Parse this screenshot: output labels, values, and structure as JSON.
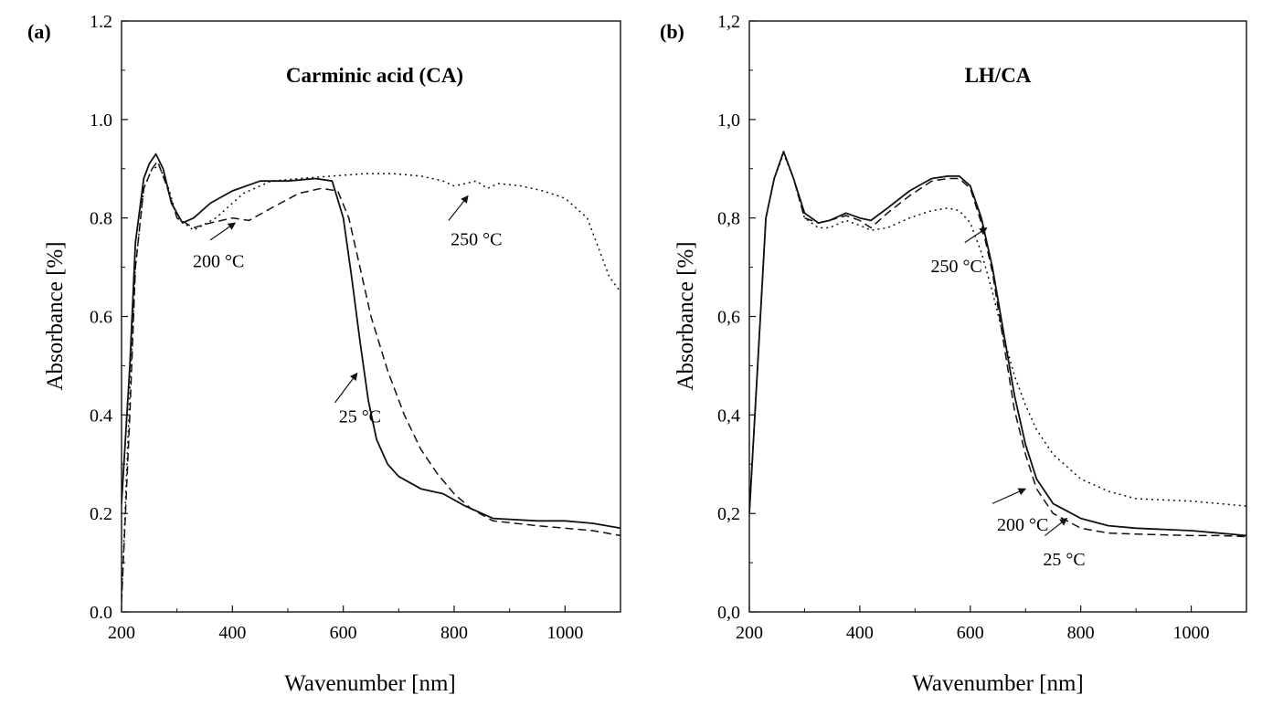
{
  "chart_data": [
    {
      "type": "line",
      "panel_label": "(a)",
      "title": "Carminic acid (CA)",
      "xlabel": "Wavenumber [nm]",
      "ylabel": "Absorbance [%]",
      "xlim": [
        200,
        1100
      ],
      "ylim": [
        0.0,
        1.2
      ],
      "xticks": [
        "200",
        "400",
        "600",
        "800",
        "1000"
      ],
      "xtick_values": [
        200,
        400,
        600,
        800,
        1000
      ],
      "yticks": [
        "0.0",
        "0.2",
        "0.4",
        "0.6",
        "0.8",
        "1.0",
        "1.2"
      ],
      "ytick_values": [
        0,
        0.2,
        0.4,
        0.6,
        0.8,
        1.0,
        1.2
      ],
      "grid": false,
      "series": [
        {
          "name": "25 °C",
          "style": "solid",
          "points": [
            [
              200,
              0.22
            ],
            [
              215,
              0.5
            ],
            [
              225,
              0.75
            ],
            [
              240,
              0.88
            ],
            [
              250,
              0.91
            ],
            [
              262,
              0.93
            ],
            [
              275,
              0.9
            ],
            [
              290,
              0.83
            ],
            [
              310,
              0.79
            ],
            [
              330,
              0.8
            ],
            [
              360,
              0.83
            ],
            [
              400,
              0.855
            ],
            [
              450,
              0.875
            ],
            [
              500,
              0.875
            ],
            [
              550,
              0.88
            ],
            [
              580,
              0.875
            ],
            [
              600,
              0.8
            ],
            [
              615,
              0.68
            ],
            [
              630,
              0.55
            ],
            [
              645,
              0.43
            ],
            [
              660,
              0.35
            ],
            [
              680,
              0.3
            ],
            [
              700,
              0.275
            ],
            [
              740,
              0.25
            ],
            [
              780,
              0.24
            ],
            [
              820,
              0.215
            ],
            [
              870,
              0.19
            ],
            [
              950,
              0.185
            ],
            [
              1000,
              0.185
            ],
            [
              1050,
              0.18
            ],
            [
              1100,
              0.17
            ]
          ]
        },
        {
          "name": "200 °C",
          "style": "dashed",
          "points": [
            [
              200,
              0.02
            ],
            [
              215,
              0.4
            ],
            [
              225,
              0.7
            ],
            [
              240,
              0.86
            ],
            [
              255,
              0.9
            ],
            [
              265,
              0.915
            ],
            [
              280,
              0.87
            ],
            [
              300,
              0.8
            ],
            [
              330,
              0.78
            ],
            [
              360,
              0.79
            ],
            [
              400,
              0.8
            ],
            [
              430,
              0.795
            ],
            [
              470,
              0.82
            ],
            [
              520,
              0.85
            ],
            [
              560,
              0.86
            ],
            [
              590,
              0.855
            ],
            [
              610,
              0.8
            ],
            [
              630,
              0.7
            ],
            [
              650,
              0.6
            ],
            [
              680,
              0.49
            ],
            [
              710,
              0.4
            ],
            [
              740,
              0.33
            ],
            [
              770,
              0.28
            ],
            [
              800,
              0.24
            ],
            [
              830,
              0.21
            ],
            [
              870,
              0.185
            ],
            [
              950,
              0.175
            ],
            [
              1000,
              0.17
            ],
            [
              1050,
              0.165
            ],
            [
              1100,
              0.155
            ]
          ]
        },
        {
          "name": "250 °C",
          "style": "dotted",
          "points": [
            [
              200,
              0.02
            ],
            [
              215,
              0.45
            ],
            [
              225,
              0.7
            ],
            [
              240,
              0.86
            ],
            [
              255,
              0.9
            ],
            [
              268,
              0.905
            ],
            [
              285,
              0.86
            ],
            [
              300,
              0.8
            ],
            [
              330,
              0.775
            ],
            [
              370,
              0.8
            ],
            [
              420,
              0.85
            ],
            [
              470,
              0.875
            ],
            [
              520,
              0.88
            ],
            [
              580,
              0.885
            ],
            [
              640,
              0.89
            ],
            [
              690,
              0.89
            ],
            [
              740,
              0.885
            ],
            [
              780,
              0.875
            ],
            [
              800,
              0.865
            ],
            [
              820,
              0.87
            ],
            [
              840,
              0.875
            ],
            [
              860,
              0.86
            ],
            [
              880,
              0.87
            ],
            [
              920,
              0.865
            ],
            [
              960,
              0.855
            ],
            [
              1000,
              0.84
            ],
            [
              1040,
              0.8
            ],
            [
              1060,
              0.74
            ],
            [
              1080,
              0.68
            ],
            [
              1100,
              0.65
            ]
          ]
        }
      ],
      "annotations": [
        {
          "text": "200 °C",
          "x": 375,
          "y": 0.7,
          "arrow_from": [
            360,
            0.755
          ],
          "arrow_to": [
            405,
            0.79
          ]
        },
        {
          "text": "250 °C",
          "x": 840,
          "y": 0.745,
          "arrow_from": [
            790,
            0.795
          ],
          "arrow_to": [
            825,
            0.845
          ]
        },
        {
          "text": "25 °C",
          "x": 630,
          "y": 0.385,
          "arrow_from": [
            585,
            0.425
          ],
          "arrow_to": [
            625,
            0.485
          ]
        }
      ]
    },
    {
      "type": "line",
      "panel_label": "(b)",
      "title": "LH/CA",
      "xlabel": "Wavenumber [nm]",
      "ylabel": "Absorbance [%]",
      "xlim": [
        200,
        1100
      ],
      "ylim": [
        0.0,
        1.2
      ],
      "xticks": [
        "200",
        "400",
        "600",
        "800",
        "1000"
      ],
      "xtick_values": [
        200,
        400,
        600,
        800,
        1000
      ],
      "yticks": [
        "0,0",
        "0,2",
        "0,4",
        "0,6",
        "0,8",
        "1,0",
        "1,2"
      ],
      "ytick_values": [
        0,
        0.2,
        0.4,
        0.6,
        0.8,
        1.0,
        1.2
      ],
      "grid": false,
      "series": [
        {
          "name": "25 °C",
          "style": "solid",
          "points": [
            [
              200,
              0.2
            ],
            [
              215,
              0.5
            ],
            [
              230,
              0.8
            ],
            [
              245,
              0.88
            ],
            [
              262,
              0.935
            ],
            [
              280,
              0.88
            ],
            [
              300,
              0.81
            ],
            [
              325,
              0.79
            ],
            [
              345,
              0.795
            ],
            [
              375,
              0.81
            ],
            [
              400,
              0.8
            ],
            [
              420,
              0.795
            ],
            [
              450,
              0.82
            ],
            [
              490,
              0.855
            ],
            [
              530,
              0.88
            ],
            [
              560,
              0.885
            ],
            [
              580,
              0.885
            ],
            [
              600,
              0.865
            ],
            [
              620,
              0.8
            ],
            [
              640,
              0.7
            ],
            [
              660,
              0.57
            ],
            [
              680,
              0.44
            ],
            [
              700,
              0.34
            ],
            [
              720,
              0.27
            ],
            [
              750,
              0.22
            ],
            [
              800,
              0.19
            ],
            [
              850,
              0.175
            ],
            [
              900,
              0.17
            ],
            [
              1000,
              0.165
            ],
            [
              1050,
              0.16
            ],
            [
              1100,
              0.155
            ]
          ]
        },
        {
          "name": "200 °C",
          "style": "dashed",
          "points": [
            [
              200,
              0.2
            ],
            [
              215,
              0.5
            ],
            [
              230,
              0.8
            ],
            [
              245,
              0.88
            ],
            [
              262,
              0.935
            ],
            [
              280,
              0.88
            ],
            [
              300,
              0.8
            ],
            [
              325,
              0.79
            ],
            [
              345,
              0.795
            ],
            [
              375,
              0.805
            ],
            [
              400,
              0.795
            ],
            [
              420,
              0.78
            ],
            [
              450,
              0.81
            ],
            [
              490,
              0.845
            ],
            [
              530,
              0.875
            ],
            [
              560,
              0.88
            ],
            [
              580,
              0.88
            ],
            [
              600,
              0.86
            ],
            [
              620,
              0.79
            ],
            [
              640,
              0.69
            ],
            [
              660,
              0.55
            ],
            [
              680,
              0.41
            ],
            [
              700,
              0.32
            ],
            [
              720,
              0.25
            ],
            [
              750,
              0.2
            ],
            [
              800,
              0.17
            ],
            [
              850,
              0.16
            ],
            [
              900,
              0.158
            ],
            [
              1000,
              0.155
            ],
            [
              1050,
              0.155
            ],
            [
              1100,
              0.153
            ]
          ]
        },
        {
          "name": "250 °C",
          "style": "dotted",
          "points": [
            [
              200,
              0.2
            ],
            [
              215,
              0.5
            ],
            [
              230,
              0.8
            ],
            [
              245,
              0.88
            ],
            [
              262,
              0.93
            ],
            [
              280,
              0.88
            ],
            [
              300,
              0.8
            ],
            [
              325,
              0.78
            ],
            [
              345,
              0.78
            ],
            [
              375,
              0.795
            ],
            [
              400,
              0.785
            ],
            [
              420,
              0.775
            ],
            [
              450,
              0.78
            ],
            [
              490,
              0.8
            ],
            [
              530,
              0.815
            ],
            [
              560,
              0.82
            ],
            [
              580,
              0.815
            ],
            [
              600,
              0.79
            ],
            [
              620,
              0.73
            ],
            [
              640,
              0.65
            ],
            [
              660,
              0.56
            ],
            [
              680,
              0.48
            ],
            [
              700,
              0.42
            ],
            [
              720,
              0.37
            ],
            [
              750,
              0.32
            ],
            [
              800,
              0.27
            ],
            [
              850,
              0.245
            ],
            [
              900,
              0.23
            ],
            [
              1000,
              0.225
            ],
            [
              1050,
              0.22
            ],
            [
              1100,
              0.215
            ]
          ]
        }
      ],
      "annotations": [
        {
          "text": "250 °C",
          "x": 575,
          "y": 0.69,
          "arrow_from": [
            590,
            0.75
          ],
          "arrow_to": [
            630,
            0.78
          ]
        },
        {
          "text": "200 °C",
          "x": 695,
          "y": 0.165,
          "arrow_from": [
            640,
            0.22
          ],
          "arrow_to": [
            700,
            0.25
          ]
        },
        {
          "text": "25 °C",
          "x": 770,
          "y": 0.095,
          "arrow_from": [
            735,
            0.155
          ],
          "arrow_to": [
            775,
            0.19
          ]
        }
      ]
    }
  ]
}
